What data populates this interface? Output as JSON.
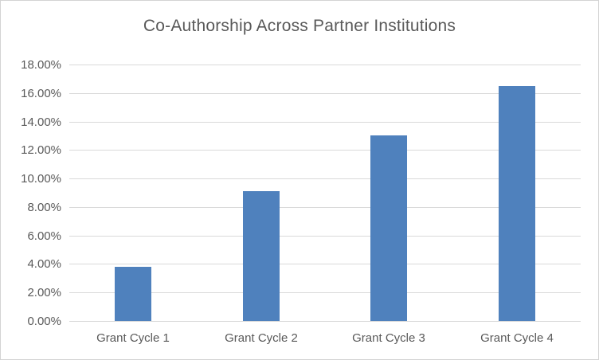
{
  "chart_data": {
    "type": "bar",
    "title": "Co-Authorship Across Partner Institutions",
    "categories": [
      "Grant Cycle 1",
      "Grant Cycle 2",
      "Grant Cycle 3",
      "Grant Cycle 4"
    ],
    "values": [
      3.8,
      9.1,
      13.0,
      16.5
    ],
    "value_unit": "percent",
    "xlabel": "",
    "ylabel": "",
    "ylim": [
      0,
      18
    ],
    "ytick_values": [
      0,
      2,
      4,
      6,
      8,
      10,
      12,
      14,
      16,
      18
    ],
    "ytick_labels": [
      "0.00%",
      "2.00%",
      "4.00%",
      "6.00%",
      "8.00%",
      "10.00%",
      "12.00%",
      "14.00%",
      "16.00%",
      "18.00%"
    ],
    "grid": true,
    "legend_position": "none",
    "colors": {
      "bar_fill": "#4f81bd",
      "gridline": "#d9d9d9",
      "axis_line": "#d9d9d9",
      "text": "#595959",
      "background": "#ffffff",
      "border": "#d3d3d3"
    }
  }
}
